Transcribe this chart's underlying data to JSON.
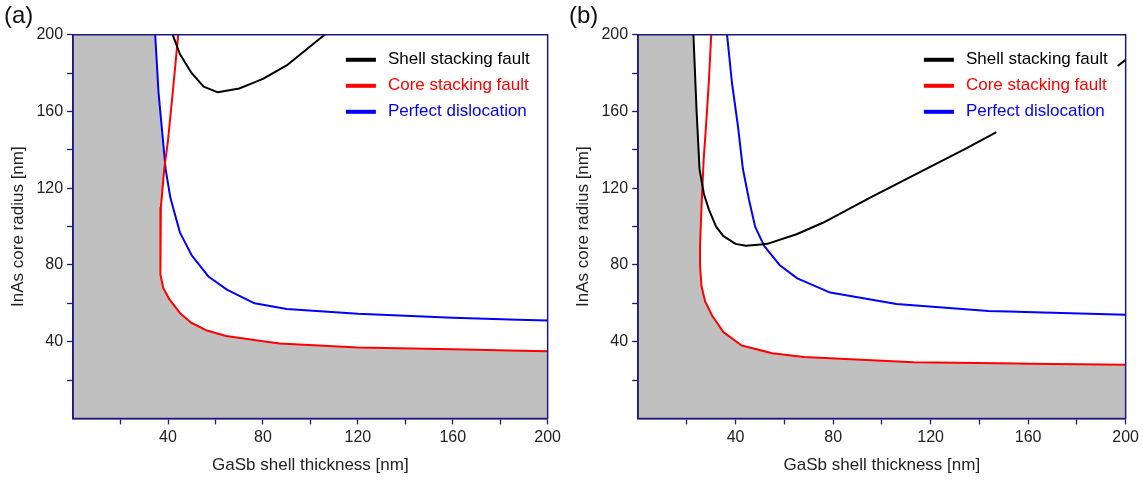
{
  "chart_data": [
    {
      "type": "line",
      "title": "(a)",
      "xlabel": "GaSb shell thickness [nm]",
      "ylabel": "InAs core radius [nm]",
      "xlim": [
        0,
        200
      ],
      "ylim": [
        0,
        200
      ],
      "xticks": [
        {
          "value": 20,
          "label": null
        },
        40,
        {
          "value": 60,
          "label": null
        },
        80,
        {
          "value": 100,
          "label": null
        },
        120,
        {
          "value": 140,
          "label": null
        },
        160,
        {
          "value": 180,
          "label": null
        },
        200
      ],
      "yticks": [
        {
          "value": 20,
          "label": null
        },
        40,
        {
          "value": 60,
          "label": null
        },
        80,
        {
          "value": 100,
          "label": null
        },
        120,
        {
          "value": 140,
          "label": null
        },
        160,
        {
          "value": 180,
          "label": null
        },
        200
      ],
      "grid": false,
      "legend": "top right",
      "marker": "none",
      "line_style": "solid",
      "series": [
        {
          "type": "area",
          "color": "#c0c0c0",
          "x": [
            0,
            34.6,
            36,
            37.5,
            38.6,
            37.5,
            37,
            36.8,
            38,
            40.6,
            45,
            49.6,
            56,
            64.5,
            87,
            120,
            160,
            200
          ],
          "values": [
            200,
            200,
            170,
            150,
            130,
            115,
            110,
            75,
            68,
            62,
            55,
            50,
            46,
            43,
            39,
            37,
            36,
            35
          ]
        },
        {
          "name": "Shell stacking fault",
          "color": "#000000",
          "x": [
            42,
            45,
            50,
            55,
            61,
            70,
            80,
            90,
            100,
            106
          ],
          "values": [
            200,
            190,
            180,
            173,
            170,
            172,
            177,
            184,
            194,
            200
          ]
        },
        {
          "name": "Core stacking fault",
          "color": "#ff0000",
          "x": [
            44.3,
            42,
            40,
            38.4,
            37,
            36.8,
            38,
            40.6,
            45,
            49.6,
            56,
            64.5,
            87,
            120,
            160,
            200
          ],
          "values": [
            200,
            170,
            145,
            130,
            110,
            75,
            68,
            62,
            55,
            50,
            46,
            43,
            39,
            37,
            36,
            35
          ]
        },
        {
          "name": "Perfect dislocation",
          "color": "#0000ff",
          "x": [
            34.6,
            36,
            37.5,
            39,
            41,
            45,
            50,
            57,
            65,
            76.5,
            90,
            120,
            160,
            200
          ],
          "values": [
            200,
            170,
            150,
            130,
            115,
            97,
            85,
            74,
            67,
            60,
            57,
            54.5,
            52.5,
            51
          ]
        }
      ]
    },
    {
      "type": "line",
      "title": "(b)",
      "xlabel": "GaSb shell thickness [nm]",
      "ylabel": "InAs core radius [nm]",
      "xlim": [
        0,
        200
      ],
      "ylim": [
        0,
        200
      ],
      "xticks": [
        {
          "value": 20,
          "label": null
        },
        40,
        {
          "value": 60,
          "label": null
        },
        80,
        {
          "value": 100,
          "label": null
        },
        120,
        {
          "value": 140,
          "label": null
        },
        160,
        {
          "value": 180,
          "label": null
        },
        200
      ],
      "yticks": [
        {
          "value": 20,
          "label": null
        },
        40,
        {
          "value": 60,
          "label": null
        },
        80,
        {
          "value": 100,
          "label": null
        },
        120,
        {
          "value": 140,
          "label": null
        },
        160,
        {
          "value": 180,
          "label": null
        },
        200
      ],
      "grid": false,
      "legend": "top right",
      "marker": "none",
      "line_style": "solid",
      "series": [
        {
          "type": "area",
          "color": "#c0c0c0",
          "x": [
            0,
            22.7,
            24,
            25.2,
            26.2,
            26,
            25.4,
            25.4,
            26,
            27.5,
            30.4,
            35,
            42.5,
            55,
            68,
            113,
            160,
            200
          ],
          "values": [
            200,
            200,
            160,
            135,
            120,
            110,
            90,
            80,
            69,
            61,
            53.5,
            45,
            38,
            34,
            32,
            29.3,
            28.5,
            28
          ]
        },
        {
          "name": "Shell stacking fault",
          "color": "#000000",
          "x": [
            22.7,
            24,
            25.2,
            27,
            29,
            32,
            35,
            40,
            44.2,
            53,
            65,
            75.8,
            95,
            118,
            135,
            146.6,
            170,
            197,
            200
          ],
          "values": [
            200,
            160,
            130,
            117,
            109,
            100,
            95,
            91,
            90,
            91,
            96,
            102,
            115,
            130,
            141,
            149,
            null,
            184,
            187
          ]
        },
        {
          "name": "Core stacking fault",
          "color": "#ff0000",
          "x": [
            30,
            29,
            28,
            26.9,
            26,
            25.4,
            25.4,
            26,
            27.5,
            30.4,
            35,
            42.5,
            55,
            68,
            113,
            160,
            200
          ],
          "values": [
            200,
            175,
            155,
            135,
            110,
            90,
            80,
            69,
            61,
            53.5,
            45,
            38,
            34,
            32,
            29.3,
            28.5,
            28
          ]
        },
        {
          "name": "Perfect dislocation",
          "color": "#0000ff",
          "x": [
            36.5,
            38.5,
            41,
            43,
            45.5,
            48,
            51.7,
            58,
            65.3,
            78.8,
            106,
            143.7,
            200
          ],
          "values": [
            200,
            175,
            152,
            130,
            114,
            100,
            90,
            80,
            73,
            65.6,
            59.7,
            56,
            54
          ]
        }
      ]
    }
  ]
}
